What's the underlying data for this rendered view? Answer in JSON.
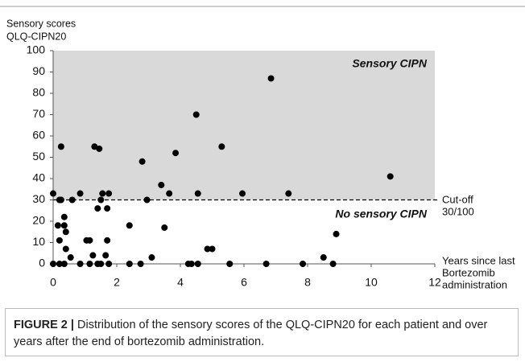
{
  "chart_data": {
    "type": "scatter",
    "y_label": [
      "Sensory scores",
      "QLQ-CIPN20"
    ],
    "x_label": [
      "Years since last",
      "Bortezomib",
      "administration"
    ],
    "annotations": {
      "above": "Sensory CIPN",
      "below": "No sensory CIPN",
      "cutoff": [
        "Cut-off",
        "30/100"
      ]
    },
    "threshold": 30,
    "shade_color": "#d9d9d9",
    "color": "#000000",
    "x": [
      0,
      0,
      0.2,
      0.25,
      0.2,
      0.15,
      0.2,
      0.25,
      0.35,
      0.35,
      0.4,
      0.4,
      0.35,
      0.55,
      0.6,
      0.85,
      0.85,
      1.05,
      1.15,
      1.15,
      1.25,
      1.3,
      1.4,
      1.4,
      1.45,
      1.5,
      1.55,
      1.5,
      1.65,
      1.7,
      1.7,
      1.75,
      1.75,
      2.4,
      2.4,
      2.75,
      2.8,
      2.95,
      3.1,
      3.4,
      3.5,
      3.65,
      3.85,
      4.25,
      4.35,
      4.5,
      4.55,
      4.55,
      4.85,
      5.0,
      5.3,
      5.55,
      5.95,
      6.7,
      6.85,
      7.4,
      7.85,
      8.5,
      8.8,
      8.9,
      10.6
    ],
    "values": [
      33,
      0,
      0,
      55,
      11,
      18,
      30,
      30,
      18,
      22,
      15,
      7,
      0,
      3,
      30,
      33,
      0,
      11,
      11,
      0,
      4,
      55,
      26,
      0,
      54,
      30,
      33,
      0,
      4,
      26,
      11,
      33,
      0,
      18,
      0,
      0,
      48,
      30,
      3,
      37,
      17,
      33,
      52,
      0,
      0,
      70,
      0,
      33,
      7,
      7,
      55,
      0,
      33,
      0,
      87,
      33,
      0,
      3,
      0,
      14,
      41
    ],
    "xlim": [
      0,
      12
    ],
    "xticks": [
      0,
      2,
      4,
      6,
      8,
      10,
      12
    ],
    "ylim": [
      0,
      100
    ],
    "yticks": [
      0,
      10,
      20,
      30,
      40,
      50,
      60,
      70,
      80,
      90,
      100
    ]
  },
  "caption": {
    "label": "FIGURE 2 |",
    "text": "Distribution of the sensory scores of the QLQ-CIPN20 for each patient and over years after the end of bortezomib administration."
  }
}
